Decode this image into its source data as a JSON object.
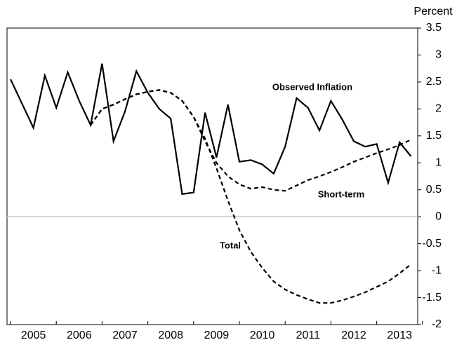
{
  "chart_data": {
    "type": "line",
    "y_label": "Percent",
    "categories": [
      null,
      null,
      "2005",
      null,
      null,
      null,
      "2006",
      null,
      null,
      null,
      "2007",
      null,
      null,
      null,
      "2008",
      null,
      null,
      null,
      "2009",
      null,
      null,
      null,
      "2010",
      null,
      null,
      null,
      "2011",
      null,
      null,
      null,
      "2012",
      null,
      null,
      null,
      "2013",
      null
    ],
    "series": [
      {
        "name": "Observed Inflation",
        "color": "#000000",
        "dash": false,
        "values": [
          2.55,
          2.1,
          1.65,
          2.62,
          2.02,
          2.68,
          2.15,
          1.7,
          2.84,
          1.4,
          1.95,
          2.7,
          2.3,
          2.0,
          1.82,
          0.42,
          0.45,
          1.93,
          1.1,
          2.08,
          1.02,
          1.05,
          0.97,
          0.8,
          1.3,
          2.2,
          2.02,
          1.6,
          2.15,
          1.8,
          1.4,
          1.3,
          1.35,
          0.63,
          1.38,
          1.12
        ]
      },
      {
        "name": "Short-term",
        "color": "#000000",
        "dash": true,
        "values": [
          null,
          null,
          null,
          null,
          null,
          null,
          null,
          1.7,
          2.0,
          2.08,
          2.18,
          2.27,
          2.32,
          2.35,
          2.3,
          2.15,
          1.85,
          1.4,
          1.0,
          0.75,
          0.6,
          0.52,
          0.55,
          0.5,
          0.48,
          0.58,
          0.68,
          0.75,
          0.83,
          0.92,
          1.02,
          1.1,
          1.18,
          1.25,
          1.33,
          1.43
        ]
      },
      {
        "name": "Total",
        "color": "#000000",
        "dash": true,
        "values": [
          null,
          null,
          null,
          null,
          null,
          null,
          null,
          1.7,
          2.0,
          2.08,
          2.18,
          2.27,
          2.32,
          2.35,
          2.3,
          2.15,
          1.85,
          1.45,
          0.9,
          0.3,
          -0.25,
          -0.65,
          -0.95,
          -1.2,
          -1.35,
          -1.45,
          -1.53,
          -1.6,
          -1.6,
          -1.55,
          -1.48,
          -1.4,
          -1.3,
          -1.2,
          -1.05,
          -0.88
        ]
      }
    ],
    "ylim": [
      -2,
      3.5
    ],
    "yticks": [
      3.5,
      3,
      2.5,
      2,
      1.5,
      1,
      0.5,
      0,
      -0.5,
      -1,
      -1.5,
      -2
    ],
    "y_axis_side": "right"
  }
}
